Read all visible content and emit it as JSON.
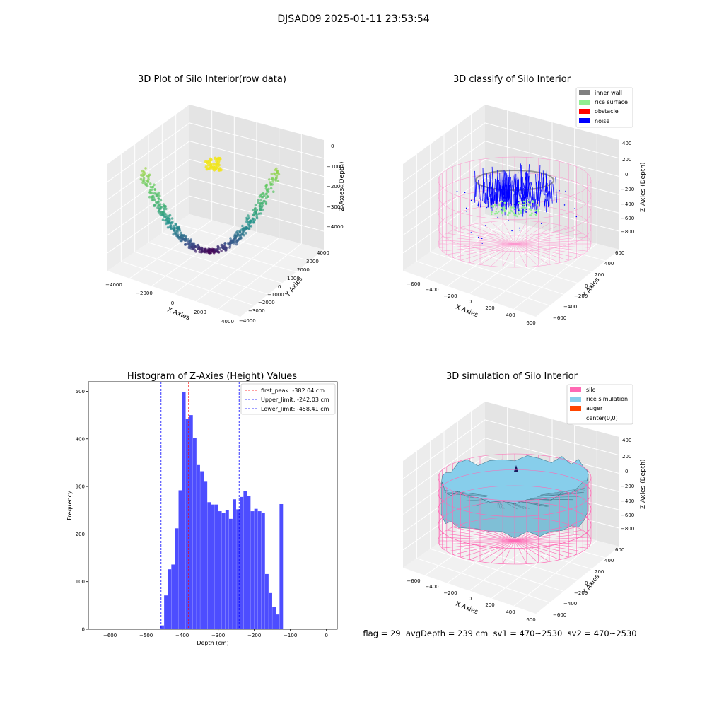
{
  "suptitle": "DJSAD09 2025-01-11 23:53:54",
  "panels": {
    "raw": {
      "title": "3D Plot of Silo Interior(row data)",
      "xlabel": "X Axies",
      "ylabel": "Y Axies",
      "zlabel": "Z Axies (Depth)",
      "xticks": [
        "−4000",
        "−2000",
        "0",
        "2000",
        "4000"
      ],
      "yticks": [
        "4000",
        "3000",
        "2000",
        "1000",
        "0",
        "−1000",
        "−2000",
        "−3000",
        "−4000"
      ],
      "zticks": [
        "0",
        "−1000",
        "−2000",
        "−3000",
        "−4000"
      ]
    },
    "classify": {
      "title": "3D classify of Silo Interior",
      "xlabel": "X Axies",
      "ylabel": "Y Axies",
      "zlabel": "Z Axies (Depth)",
      "xticks": [
        "−600",
        "−400",
        "−200",
        "0",
        "200",
        "400",
        "600"
      ],
      "yticks": [
        "600",
        "400",
        "200",
        "0",
        "−200",
        "−400",
        "−600"
      ],
      "zticks": [
        "400",
        "200",
        "0",
        "−200",
        "−400",
        "−600",
        "−800"
      ],
      "legend": [
        {
          "label": "inner wall",
          "color": "#808080"
        },
        {
          "label": "rice surface",
          "color": "#90ee90"
        },
        {
          "label": "obstacle",
          "color": "#ff0000"
        },
        {
          "label": "noise",
          "color": "#0000ff"
        }
      ]
    },
    "simulation": {
      "title": "3D simulation of Silo Interior",
      "xlabel": "X Axies",
      "ylabel": "Y Axies",
      "zlabel": "Z Axies (Depth)",
      "xticks": [
        "−600",
        "−400",
        "−200",
        "0",
        "200",
        "400",
        "600"
      ],
      "yticks": [
        "600",
        "400",
        "200",
        "0",
        "−200",
        "−400",
        "−600"
      ],
      "zticks": [
        "400",
        "200",
        "0",
        "−200",
        "−400",
        "−600",
        "−800"
      ],
      "legend": [
        {
          "label": "silo",
          "color": "#ff69b4"
        },
        {
          "label": "rice simulation",
          "color": "#87ceeb"
        },
        {
          "label": "auger",
          "color": "#ff4500"
        },
        {
          "label": "center(0,0)",
          "color": "#ffffff"
        }
      ]
    }
  },
  "status": {
    "text": "flag = 29  avgDepth = 239 cm  sv1 = 470~2530  sv2 = 470~2530"
  },
  "chart_data": [
    {
      "type": "scatter",
      "title": "3D Plot of Silo Interior(row data)",
      "xlabel": "X Axies",
      "ylabel": "Y Axies",
      "zlabel": "Z Axies (Depth)",
      "xlim": [
        -4500,
        4500
      ],
      "ylim": [
        -4500,
        4500
      ],
      "zlim": [
        -4500,
        500
      ],
      "grid": true
    },
    {
      "type": "scatter",
      "title": "3D classify of Silo Interior",
      "xlabel": "X Axies",
      "ylabel": "Y Axies",
      "zlabel": "Z Axies (Depth)",
      "xlim": [
        -650,
        650
      ],
      "ylim": [
        -650,
        650
      ],
      "zlim": [
        -900,
        450
      ],
      "series": [
        {
          "name": "inner wall",
          "color": "#808080"
        },
        {
          "name": "rice surface",
          "color": "#90ee90"
        },
        {
          "name": "obstacle",
          "color": "#ff0000"
        },
        {
          "name": "noise",
          "color": "#0000ff"
        }
      ],
      "legend_position": "upper-right",
      "grid": true
    },
    {
      "type": "bar",
      "title": "Histogram of Z-Axies (Height) Values",
      "xlabel": "Depth (cm)",
      "ylabel": "Frequency",
      "xlim": [
        -660,
        30
      ],
      "ylim": [
        0,
        520
      ],
      "xticks": [
        -600,
        -500,
        -400,
        -300,
        -200,
        -100,
        0
      ],
      "yticks": [
        0,
        100,
        200,
        300,
        400,
        500
      ],
      "bin_width": 10,
      "bar_color": "#4d4dff",
      "bins": [
        {
          "x": -640,
          "y": 1
        },
        {
          "x": -580,
          "y": 1
        },
        {
          "x": -570,
          "y": 1
        },
        {
          "x": -540,
          "y": 1
        },
        {
          "x": -530,
          "y": 1
        },
        {
          "x": -520,
          "y": 1
        },
        {
          "x": -510,
          "y": 1
        },
        {
          "x": -500,
          "y": 1
        },
        {
          "x": -490,
          "y": 1
        },
        {
          "x": -480,
          "y": 1
        },
        {
          "x": -470,
          "y": 1
        },
        {
          "x": -460,
          "y": 8
        },
        {
          "x": -450,
          "y": 71
        },
        {
          "x": -440,
          "y": 126
        },
        {
          "x": -430,
          "y": 136
        },
        {
          "x": -420,
          "y": 212
        },
        {
          "x": -410,
          "y": 292
        },
        {
          "x": -400,
          "y": 498
        },
        {
          "x": -390,
          "y": 442
        },
        {
          "x": -380,
          "y": 450
        },
        {
          "x": -370,
          "y": 402
        },
        {
          "x": -360,
          "y": 345
        },
        {
          "x": -350,
          "y": 332
        },
        {
          "x": -340,
          "y": 310
        },
        {
          "x": -330,
          "y": 267
        },
        {
          "x": -320,
          "y": 262
        },
        {
          "x": -310,
          "y": 262
        },
        {
          "x": -300,
          "y": 248
        },
        {
          "x": -290,
          "y": 245
        },
        {
          "x": -280,
          "y": 250
        },
        {
          "x": -270,
          "y": 232
        },
        {
          "x": -260,
          "y": 273
        },
        {
          "x": -250,
          "y": 252
        },
        {
          "x": -240,
          "y": 278
        },
        {
          "x": -230,
          "y": 290
        },
        {
          "x": -220,
          "y": 280
        },
        {
          "x": -210,
          "y": 248
        },
        {
          "x": -200,
          "y": 253
        },
        {
          "x": -190,
          "y": 248
        },
        {
          "x": -180,
          "y": 245
        },
        {
          "x": -170,
          "y": 116
        },
        {
          "x": -160,
          "y": 76
        },
        {
          "x": -150,
          "y": 47
        },
        {
          "x": -140,
          "y": 31
        },
        {
          "x": -130,
          "y": 263
        }
      ],
      "lines": [
        {
          "name": "first_peak: -382.04 cm",
          "x": -382.04,
          "color": "#ff0000"
        },
        {
          "name": "Upper_limit: -242.03 cm",
          "x": -242.03,
          "color": "#0000ff"
        },
        {
          "name": "Lower_limit: -458.41 cm",
          "x": -458.41,
          "color": "#0000ff"
        }
      ],
      "legend_position": "upper-right"
    },
    {
      "type": "area",
      "title": "3D simulation of Silo Interior",
      "xlabel": "X Axies",
      "ylabel": "Y Axies",
      "zlabel": "Z Axies (Depth)",
      "xlim": [
        -650,
        650
      ],
      "ylim": [
        -650,
        650
      ],
      "zlim": [
        -900,
        450
      ],
      "series": [
        {
          "name": "silo",
          "color": "#ff69b4"
        },
        {
          "name": "rice simulation",
          "color": "#87ceeb"
        },
        {
          "name": "auger",
          "color": "#ff4500"
        },
        {
          "name": "center(0,0)",
          "color": "#ffffff"
        }
      ],
      "legend_position": "upper-right",
      "grid": true
    }
  ]
}
